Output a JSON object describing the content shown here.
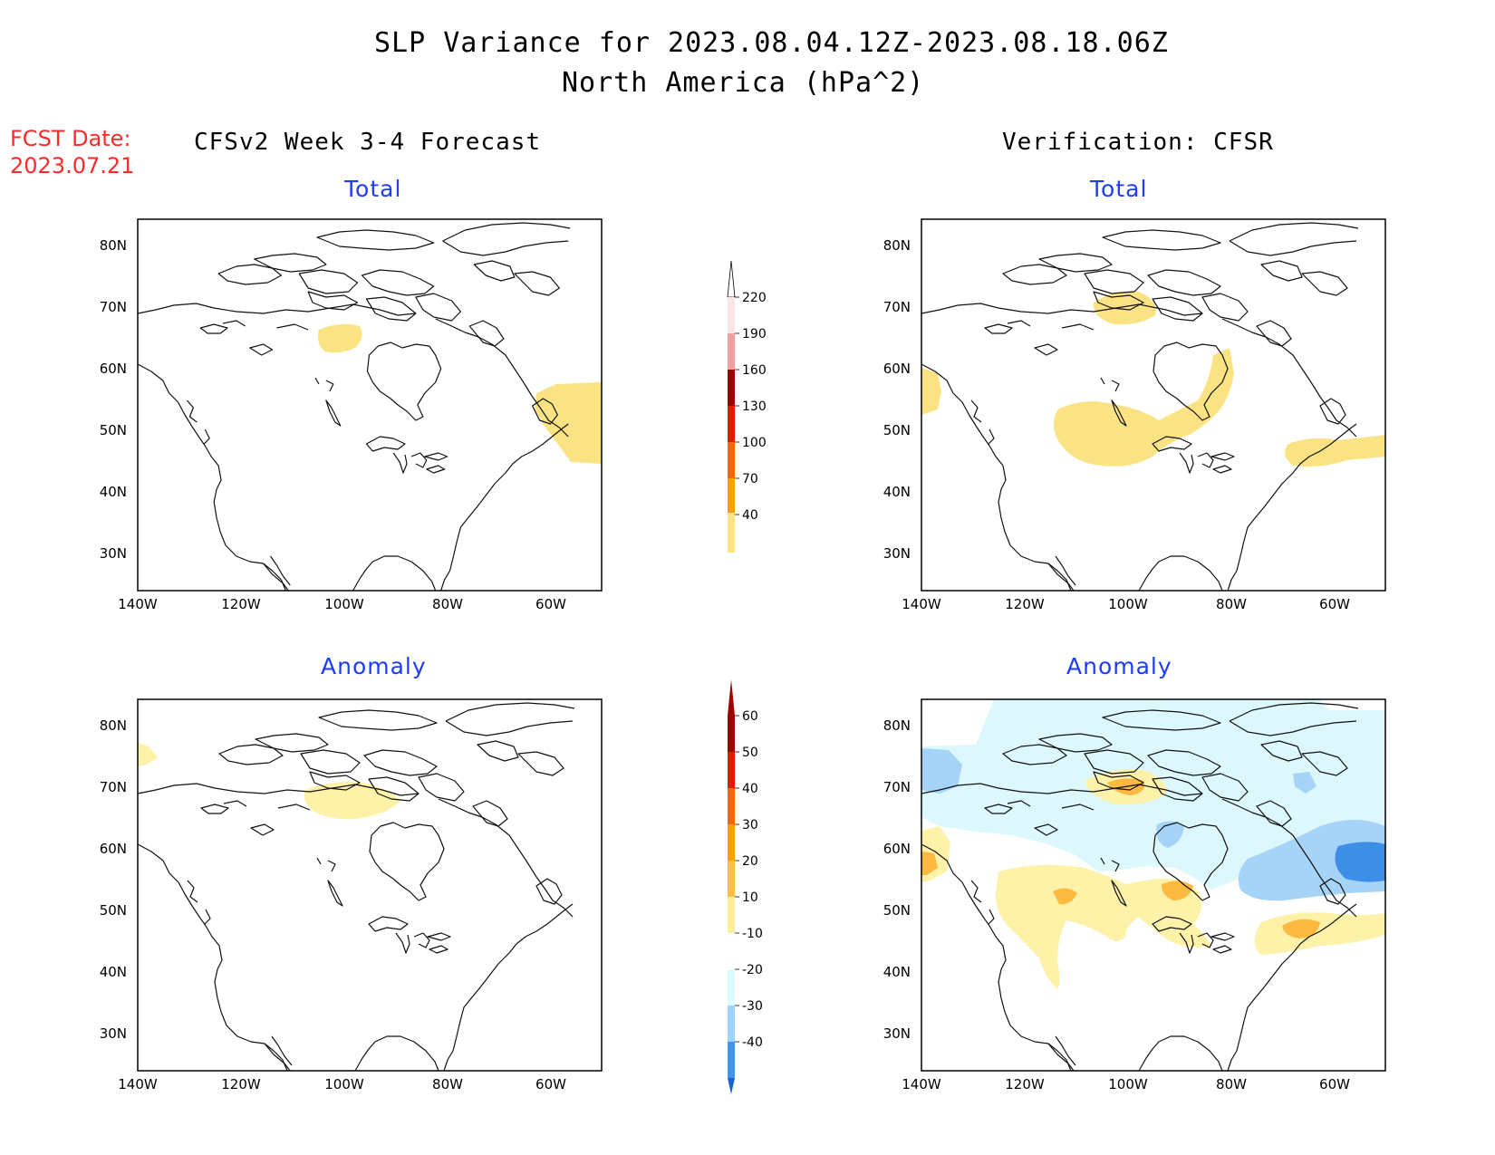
{
  "header": {
    "title": "SLP Variance for 2023.08.04.12Z-2023.08.18.06Z",
    "subtitle": "North America (hPa^2)"
  },
  "fcst": {
    "label": "FCST Date:",
    "date": "2023.07.21"
  },
  "columns": {
    "left": "CFSv2 Week 3-4 Forecast",
    "right": "Verification: CFSR"
  },
  "panels": {
    "total_label": "Total",
    "anomaly_label": "Anomaly"
  },
  "axes": {
    "lat_labels": [
      "80N",
      "70N",
      "60N",
      "50N",
      "40N",
      "30N"
    ],
    "lon_labels": [
      "140W",
      "120W",
      "100W",
      "80W",
      "60W"
    ]
  },
  "colorbar_total": {
    "labels": [
      "220",
      "190",
      "160",
      "130",
      "100",
      "70",
      "40"
    ],
    "colors": [
      "#fbe4e4",
      "#f0a0a0",
      "#a00000",
      "#dc1e00",
      "#ff6400",
      "#ffa000",
      "#fae57e"
    ]
  },
  "colorbar_anomaly": {
    "labels": [
      "60",
      "50",
      "40",
      "30",
      "20",
      "10",
      "-10",
      "-20",
      "-30",
      "-40"
    ],
    "colors": [
      "#a00000",
      "#dc1e00",
      "#ff6400",
      "#ffa000",
      "#ffbe3c",
      "#fbec9a",
      "#ffffff",
      "#dcfaff",
      "#a0d2ff",
      "#3c96f0",
      "#1464d2"
    ]
  },
  "shade_colors": {
    "yellow": "#fbe384",
    "pale_yellow": "#fdf2a8",
    "orange": "#fdb940",
    "light_cyan": "#dcf8fd",
    "light_blue": "#a6d4f8",
    "blue": "#3c8ee6"
  }
}
